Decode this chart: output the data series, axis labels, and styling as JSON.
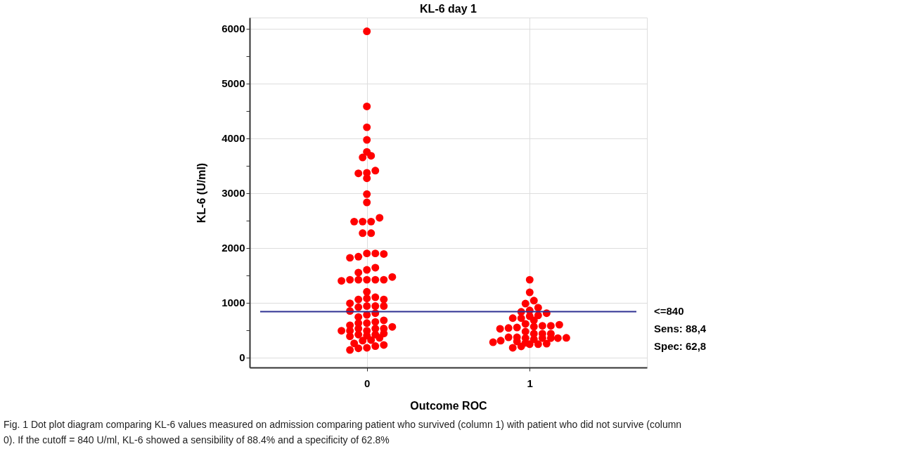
{
  "chart_data": {
    "type": "scatter",
    "title": "KL-6 day 1",
    "xlabel": "Outcome ROC",
    "ylabel": "KL-6 (U/ml)",
    "xlim": [
      -0.72,
      1.72
    ],
    "xticks": [
      0,
      1
    ],
    "ylim": [
      -180,
      6200
    ],
    "yticks": [
      0,
      {
        "value": 500,
        "label": null
      },
      1000,
      {
        "value": 1500,
        "label": null
      },
      2000,
      {
        "value": 2500,
        "label": null
      },
      3000,
      {
        "value": 3500,
        "label": null
      },
      4000,
      {
        "value": 4500,
        "label": null
      },
      5000,
      {
        "value": 5500,
        "label": null
      },
      6000
    ],
    "grid": true,
    "marker": "circle",
    "legend": false,
    "series": [
      {
        "color": "#ff0000",
        "x": [
          0,
          0,
          0,
          0,
          0,
          -0.026,
          0.026,
          -0.052,
          0,
          0.052,
          0,
          0,
          0,
          -0.078,
          -0.026,
          0.026,
          0.078,
          -0.026,
          0.026,
          -0.104,
          -0.052,
          0,
          0.052,
          0.104,
          -0.052,
          0,
          0.052,
          -0.156,
          -0.104,
          -0.052,
          0,
          0.052,
          0.104,
          0.156,
          -0.104,
          -0.104,
          -0.104,
          -0.104,
          -0.104,
          -0.104,
          -0.052,
          -0.052,
          -0.052,
          -0.052,
          -0.052,
          -0.052,
          -0.052,
          0,
          0,
          0,
          0,
          0,
          0,
          0,
          0,
          0.052,
          0.052,
          0.052,
          0.052,
          0.052,
          0.052,
          0.052,
          0.104,
          0.104,
          0.104,
          0.104,
          0.104,
          0.104,
          0.156,
          -0.156,
          -0.078,
          -0.026,
          0.026,
          0.078
        ],
        "values": [
          5950,
          4580,
          4200,
          3970,
          3750,
          3650,
          3680,
          3360,
          3370,
          3410,
          3270,
          2980,
          2830,
          2480,
          2480,
          2480,
          2550,
          2270,
          2270,
          1820,
          1840,
          1900,
          1900,
          1890,
          1550,
          1600,
          1640,
          1400,
          1420,
          1420,
          1420,
          1420,
          1420,
          1470,
          990,
          850,
          590,
          490,
          390,
          140,
          1060,
          920,
          740,
          630,
          530,
          420,
          170,
          1200,
          1080,
          940,
          780,
          630,
          490,
          400,
          180,
          1100,
          940,
          810,
          650,
          530,
          420,
          210,
          1060,
          940,
          680,
          530,
          440,
          230,
          560,
          490,
          260,
          310,
          320,
          360
        ]
      },
      {
        "color": "#ff0000",
        "x": [
          1,
          1,
          1.026,
          0.974,
          1.052,
          0.948,
          1,
          1.104,
          0.896,
          0.948,
          1,
          1.052,
          1.026,
          0.974,
          1.026,
          1.078,
          1.13,
          1.182,
          0.818,
          0.87,
          0.922,
          0.974,
          1.026,
          1.078,
          1.13,
          0.87,
          0.922,
          0.974,
          1.026,
          1.078,
          1.13,
          1.173,
          1.225,
          0.775,
          0.822,
          0.922,
          0.974,
          1,
          1.052,
          1.104,
          0.896,
          0.948
        ],
        "values": [
          1420,
          1190,
          1040,
          985,
          910,
          835,
          860,
          810,
          720,
          720,
          755,
          770,
          680,
          615,
          565,
          580,
          580,
          600,
          525,
          540,
          550,
          475,
          435,
          435,
          435,
          370,
          370,
          355,
          335,
          355,
          355,
          355,
          360,
          280,
          310,
          295,
          270,
          245,
          245,
          255,
          180,
          205
        ]
      }
    ],
    "ref_lines": [
      {
        "axis": "y",
        "value": 840,
        "label": "<=840",
        "color": "#2e3192"
      }
    ],
    "annotations": [
      "Sens: 88,4",
      "Spec: 62,8",
      "Fig. 1 Dot plot diagram comparing KL-6 values measured on admission comparing patient who survived (column 1) with patient who did not survive (column 0). If the cutoff = 840 U/ml, KL-6 showed a sensibility of 88.4% and a specificity of 62.8%"
    ]
  }
}
